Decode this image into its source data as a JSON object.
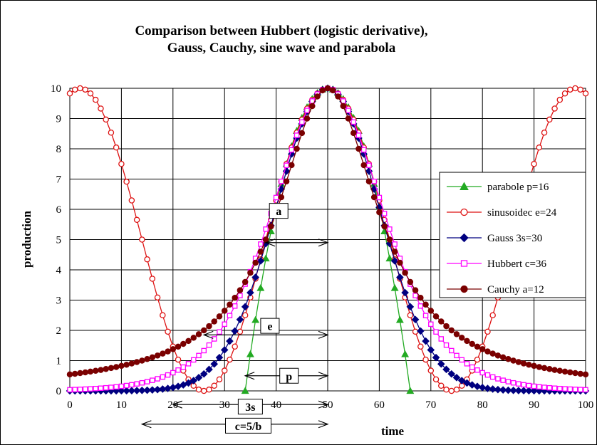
{
  "chart_data": {
    "type": "line",
    "title_line1": "Comparison between Hubbert (logistic derivative),",
    "title_line2": "Gauss, Cauchy, sine wave and parabola",
    "xlabel": "time",
    "ylabel": "production",
    "xlim": [
      0,
      100
    ],
    "ylim": [
      0,
      10
    ],
    "xticks": [
      "0",
      "10",
      "20",
      "30",
      "40",
      "50",
      "60",
      "70",
      "80",
      "90",
      "100"
    ],
    "yticks": [
      "0",
      "1",
      "2",
      "3",
      "4",
      "5",
      "6",
      "7",
      "8",
      "9",
      "10"
    ],
    "grid": true,
    "legend_position": "right",
    "peak": {
      "x": 50,
      "y": 10
    },
    "series": [
      {
        "name": "parabole  p=16",
        "type": "parabola",
        "param": 16,
        "marker": "triangle",
        "color": "#22aa22",
        "fill": "#22aa22"
      },
      {
        "name": "sinusoidec e=24",
        "type": "sine",
        "param": 24,
        "marker": "circle-open",
        "color": "#dd1111",
        "fill": "#ffffff"
      },
      {
        "name": "Gauss  3s=30",
        "type": "gauss",
        "param": 30,
        "marker": "diamond",
        "color": "#000080",
        "fill": "#000080"
      },
      {
        "name": "Hubbert  c=36",
        "type": "hubbert",
        "param": 36,
        "marker": "square-open",
        "color": "#ff00ff",
        "fill": "#ffffff"
      },
      {
        "name": "Cauchy a=12",
        "type": "cauchy",
        "param": 12,
        "marker": "circle",
        "color": "#7a0000",
        "fill": "#7a0000"
      }
    ],
    "annotations": [
      {
        "label": "a",
        "from": 38,
        "to": 50,
        "y": 4.9,
        "box_x": 40.5,
        "box_y": 5.95
      },
      {
        "label": "e",
        "from": 26,
        "to": 50,
        "y": 1.85,
        "box_x": 38.8,
        "box_y": 2.15
      },
      {
        "label": "p",
        "from": 34,
        "to": 50,
        "y": 0.5,
        "box_x": 42.5,
        "box_y": 0.5
      },
      {
        "label": "3s",
        "from": 20,
        "to": 50,
        "y": -0.45,
        "box_x": 35,
        "box_y": -0.52
      },
      {
        "label": "c=5/b",
        "from": 14,
        "to": 50,
        "y": -1.1,
        "box_x": 34.6,
        "box_y": -1.15
      }
    ]
  }
}
